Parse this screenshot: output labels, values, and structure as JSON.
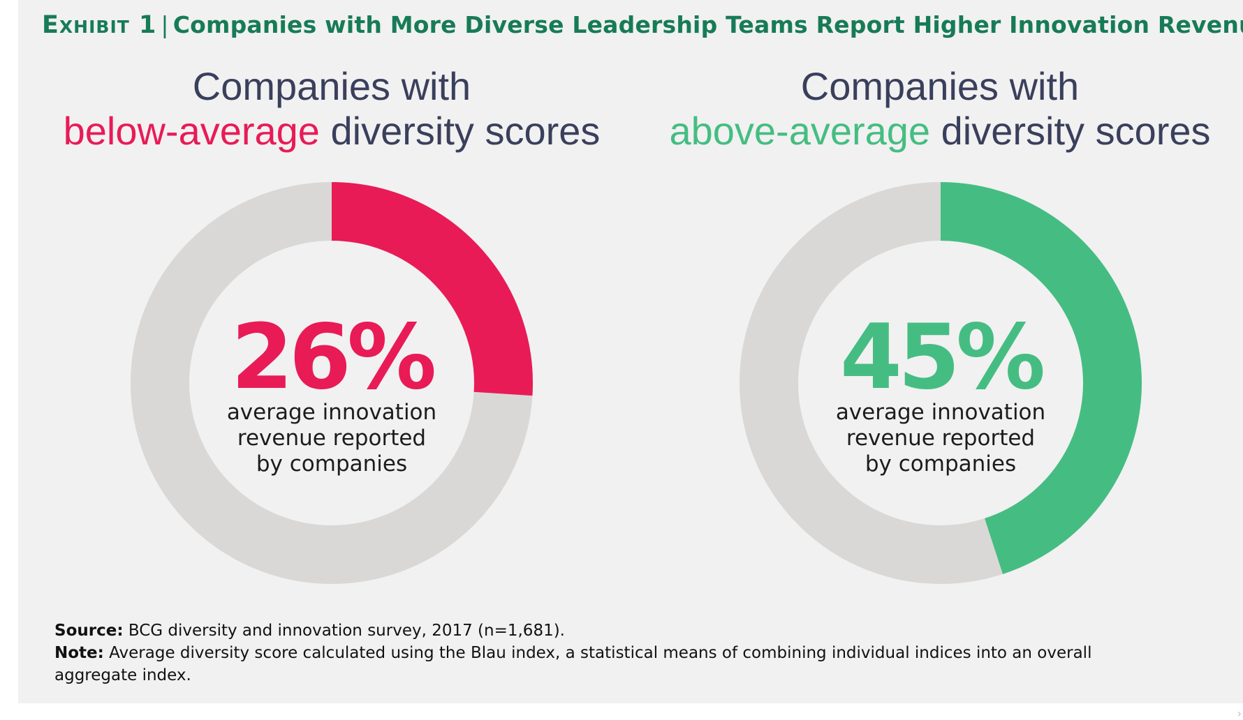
{
  "exhibit": {
    "label": "Exhibit 1",
    "separator": "|",
    "title": "Companies with More Diverse Leadership Teams Report Higher Innovation Revenue"
  },
  "groups": [
    {
      "line1": "Companies with",
      "highlight": "below-average",
      "rest": " diversity scores",
      "value_label": "26%",
      "caption": [
        "average innovation",
        "revenue reported",
        "by companies"
      ],
      "color": "#e81b57"
    },
    {
      "line1": "Companies with",
      "highlight": "above-average",
      "rest": " diversity scores",
      "value_label": "45%",
      "caption": [
        "average innovation",
        "revenue reported",
        "by companies"
      ],
      "color": "#45bd82"
    }
  ],
  "track_color": "#d9d8d6",
  "footer": {
    "source_label": "Source:",
    "source_text": " BCG diversity and innovation survey, 2017 (n=1,681).",
    "note_label": "Note:",
    "note_text": " Average diversity score calculated using the Blau index, a statistical means of combining individual indices into an overall aggregate index."
  },
  "chart_data": [
    {
      "type": "pie",
      "title": "Companies with below-average diversity scores",
      "values": [
        26,
        74
      ],
      "categories": [
        "average innovation revenue reported by companies",
        ""
      ],
      "unit": "%"
    },
    {
      "type": "pie",
      "title": "Companies with above-average diversity scores",
      "values": [
        45,
        55
      ],
      "categories": [
        "average innovation revenue reported by companies",
        ""
      ],
      "unit": "%"
    }
  ]
}
